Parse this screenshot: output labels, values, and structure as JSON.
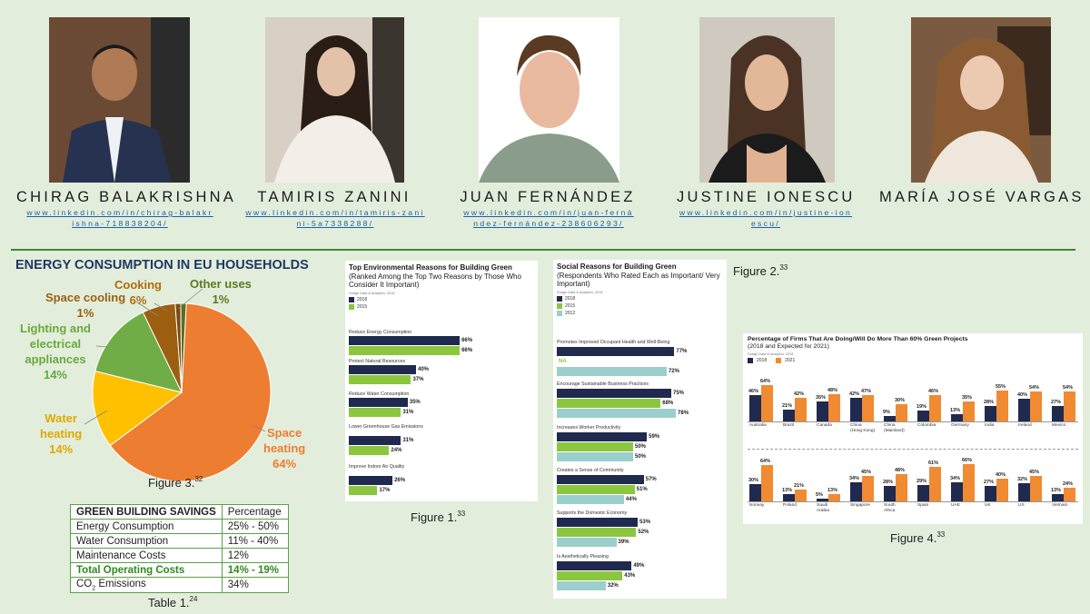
{
  "people": [
    {
      "name": "CHIRAG BALAKRISHNA",
      "link": "www.linkedin.com/in/chirag-balakrishna-718838204/",
      "photo_icon": "person-photo-icon"
    },
    {
      "name": "TAMIRIS ZANINI",
      "link": "www.linkedin.com/in/tamiris-zanini-5a7338288/",
      "photo_icon": "person-photo-icon"
    },
    {
      "name": "JUAN FERNÁNDEZ",
      "link": "www.linkedin.com/in/juan-fernández-fernández-238606293/",
      "photo_icon": "person-photo-icon"
    },
    {
      "name": "JUSTINE IONESCU",
      "link": "www.linkedin.com/in/justine-ionescu/",
      "photo_icon": "person-photo-icon"
    },
    {
      "name": "MARÍA JOSÉ VARGAS",
      "link": "",
      "photo_icon": "person-photo-icon"
    }
  ],
  "pie": {
    "title": "ENERGY CONSUMPTION IN EU HOUSEHOLDS",
    "caption": "Figure 3.",
    "caption_ref": "32",
    "labels": {
      "cooling": [
        "Space cooling",
        "1%"
      ],
      "cooking": [
        "Cooking",
        "6%"
      ],
      "other": [
        "Other uses",
        "1%"
      ],
      "lighting": [
        "Lighting and",
        "electrical",
        "appliances",
        "14%"
      ],
      "water": [
        "Water",
        "heating",
        "14%"
      ],
      "space": [
        "Space",
        "heating",
        "64%"
      ]
    }
  },
  "table": {
    "caption": "Table 1.",
    "caption_ref": "24",
    "header": [
      "GREEN BUILDING SAVINGS",
      "Percentage"
    ],
    "rows": [
      [
        "Energy Consumption",
        "25% - 50%"
      ],
      [
        "Water Consumption",
        "11% - 40%"
      ],
      [
        "Maintenance Costs",
        "12%"
      ],
      [
        "Total Operating Costs",
        "14% - 19%"
      ]
    ],
    "co2_label_pre": "CO",
    "co2_label_sub": "2",
    "co2_label_post": " Emissions",
    "co2_value": "34%"
  },
  "fig1": {
    "caption": "Figure 1.",
    "caption_ref": "33",
    "title": "Top Environmental Reasons for Building Green",
    "subtitle": "(Ranked Among the Top Two Reasons by Those Who Consider It Important)",
    "source": "Dodge Data & Analytics, 2018"
  },
  "fig_social": {
    "caption": "Figure 2.",
    "caption_ref": "33",
    "title": "Social Reasons for Building Green",
    "subtitle": "(Respondents Who Rated Each as Important/ Very Important)",
    "source": "Dodge Data & Analytics, 2018",
    "na_label": "NA"
  },
  "fig4": {
    "caption": "Figure 4.",
    "caption_ref": "33",
    "title": "Percentage of Firms That Are Doing/Will Do More Than 60% Green Projects",
    "subtitle": "(2018 and Expected for 2021)",
    "source": "Dodge Data & Analytics, 2018"
  },
  "colors": {
    "navy": "#1f2a4e",
    "green": "#8cc63f",
    "teal": "#9bcfcb",
    "orange": "#f08a33",
    "pie_orange": "#ed7d31",
    "pie_yellow": "#ffc000",
    "pie_green": "#70ad47",
    "pie_brown": "#9c5f0f",
    "pie_olive": "#5d6e1e",
    "link_blue": "#1f5ea8"
  },
  "chart_data": [
    {
      "type": "pie",
      "title": "ENERGY CONSUMPTION IN EU HOUSEHOLDS",
      "categories": [
        "Space heating",
        "Water heating",
        "Lighting and electrical appliances",
        "Cooking",
        "Space cooling",
        "Other uses"
      ],
      "values": [
        64,
        14,
        14,
        6,
        1,
        1
      ]
    },
    {
      "type": "bar",
      "title": "Top Environmental Reasons for Building Green",
      "categories": [
        "Reduce Energy Consumption",
        "Protect Natural Resources",
        "Reduce Water Consumption",
        "Lower Greenhouse Gas Emissions",
        "Improve Indoor Air Quality"
      ],
      "series": [
        {
          "name": "2018",
          "values": [
            66,
            40,
            35,
            31,
            26
          ]
        },
        {
          "name": "2015",
          "values": [
            66,
            37,
            31,
            24,
            17
          ]
        }
      ]
    },
    {
      "type": "bar",
      "title": "Social Reasons for Building Green",
      "categories": [
        "Promotes Improved Occupant Health and Well-Being",
        "Encourage Sustainable Business Practices",
        "Increases Worker Productivity",
        "Creates a Sense of Community",
        "Supports the Domestic Economy",
        "Is Aesthetically Pleasing"
      ],
      "series": [
        {
          "name": "2018",
          "values": [
            77,
            75,
            59,
            57,
            53,
            49
          ]
        },
        {
          "name": "2015",
          "values": [
            null,
            68,
            50,
            51,
            52,
            43
          ]
        },
        {
          "name": "2012",
          "values": [
            72,
            78,
            50,
            44,
            39,
            32
          ]
        }
      ]
    },
    {
      "type": "bar",
      "title": "Percentage of Firms That Are Doing/Will Do More Than 60% Green Projects",
      "categories": [
        "Australia",
        "Brazil",
        "Canada",
        "China (Hong Kong)",
        "China (Mainland)",
        "Colombia",
        "Germany",
        "India",
        "Ireland",
        "Mexico",
        "Norway",
        "Poland",
        "Saudi Arabia",
        "Singapore",
        "South Africa",
        "Spain",
        "UAE",
        "UK",
        "US",
        "Vietnam"
      ],
      "series": [
        {
          "name": "2018",
          "values": [
            46,
            21,
            35,
            42,
            9,
            19,
            13,
            28,
            40,
            27,
            30,
            13,
            5,
            34,
            28,
            29,
            34,
            27,
            32,
            13
          ]
        },
        {
          "name": "2021",
          "values": [
            64,
            42,
            48,
            47,
            30,
            46,
            35,
            55,
            54,
            54,
            64,
            21,
            13,
            45,
            48,
            61,
            66,
            40,
            45,
            24
          ]
        }
      ]
    }
  ]
}
